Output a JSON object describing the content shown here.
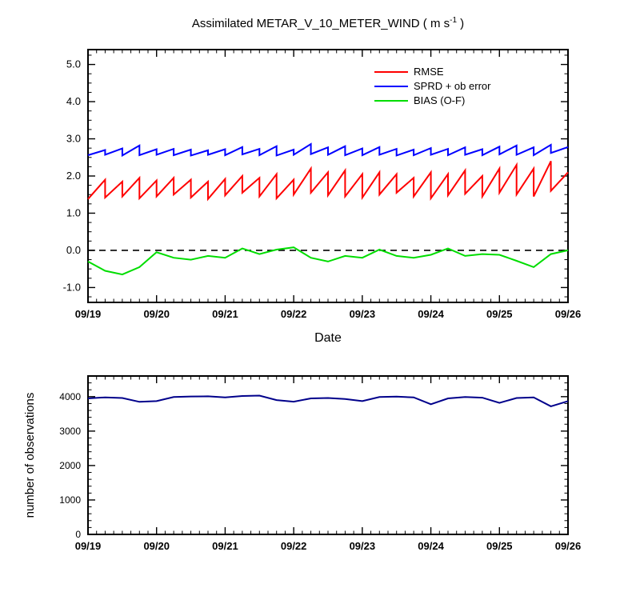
{
  "title": {
    "prefix": "Assimilated METAR_V_10_METER_WIND ( m s",
    "sup": "-1",
    "suffix": " )"
  },
  "chart_data": [
    {
      "type": "line",
      "panel": "top",
      "title": "Assimilated METAR_V_10_METER_WIND ( m s-1 )",
      "xlabel": "Date",
      "ylabel": "",
      "xlim": [
        0,
        7
      ],
      "ylim": [
        -1.4,
        5.4
      ],
      "xticks": [
        0,
        1,
        2,
        3,
        4,
        5,
        6,
        7
      ],
      "xtick_labels": [
        "09/19",
        "09/20",
        "09/21",
        "09/22",
        "09/23",
        "09/24",
        "09/25",
        "09/26"
      ],
      "yticks": [
        -1,
        0,
        1,
        2,
        3,
        4,
        5
      ],
      "ytick_labels": [
        "-1.0",
        "0.0",
        "1.0",
        "2.0",
        "3.0",
        "4.0",
        "5.0"
      ],
      "xminor": 0.125,
      "yminor": 0.25,
      "grid": false,
      "refline": 0.0,
      "legend_position": "inside-top-right",
      "legend": [
        {
          "label": "RMSE",
          "color": "#ff0000"
        },
        {
          "label": "SPRD + ob error",
          "color": "#0000ff"
        },
        {
          "label": "BIAS (O-F)",
          "color": "#00dd00"
        }
      ],
      "series": [
        {
          "name": "RMSE",
          "color": "#ff0000",
          "mode": "sawtooth",
          "x0": 0,
          "dx": 0.25,
          "lows": [
            1.38,
            1.42,
            1.45,
            1.4,
            1.45,
            1.5,
            1.42,
            1.38,
            1.48,
            1.55,
            1.45,
            1.4,
            1.5,
            1.55,
            1.48,
            1.45,
            1.42,
            1.5,
            1.55,
            1.45,
            1.4,
            1.48,
            1.52,
            1.45,
            1.55,
            1.5,
            1.45,
            1.6
          ],
          "highs": [
            1.9,
            1.85,
            1.95,
            1.88,
            1.95,
            1.9,
            1.85,
            1.92,
            2.0,
            1.95,
            2.05,
            1.9,
            2.2,
            2.1,
            2.15,
            2.05,
            2.1,
            2.05,
            1.95,
            2.1,
            2.05,
            2.15,
            2.0,
            2.2,
            2.3,
            2.2,
            2.4,
            2.1
          ]
        },
        {
          "name": "SPRD + ob error",
          "color": "#0000ff",
          "mode": "sawtooth",
          "x0": 0,
          "dx": 0.25,
          "lows": [
            2.56,
            2.57,
            2.55,
            2.56,
            2.57,
            2.56,
            2.55,
            2.57,
            2.56,
            2.58,
            2.56,
            2.55,
            2.57,
            2.59,
            2.57,
            2.56,
            2.56,
            2.57,
            2.55,
            2.56,
            2.57,
            2.56,
            2.57,
            2.56,
            2.58,
            2.57,
            2.56,
            2.62
          ],
          "highs": [
            2.7,
            2.74,
            2.82,
            2.72,
            2.73,
            2.71,
            2.69,
            2.72,
            2.78,
            2.73,
            2.8,
            2.71,
            2.86,
            2.77,
            2.8,
            2.74,
            2.78,
            2.73,
            2.71,
            2.75,
            2.73,
            2.77,
            2.72,
            2.79,
            2.82,
            2.77,
            2.84,
            2.78
          ]
        },
        {
          "name": "BIAS (O-F)",
          "color": "#00dd00",
          "mode": "poly",
          "x0": 0,
          "dx": 0.25,
          "y": [
            -0.3,
            -0.55,
            -0.65,
            -0.45,
            -0.05,
            -0.2,
            -0.25,
            -0.15,
            -0.2,
            0.05,
            -0.1,
            0.02,
            0.08,
            -0.2,
            -0.3,
            -0.15,
            -0.2,
            0.02,
            -0.15,
            -0.2,
            -0.12,
            0.05,
            -0.15,
            -0.1,
            -0.12,
            -0.28,
            -0.45,
            -0.1,
            0.0
          ]
        }
      ]
    },
    {
      "type": "line",
      "panel": "bottom",
      "xlabel": "",
      "ylabel": "number of observations",
      "xlim": [
        0,
        7
      ],
      "ylim": [
        0,
        4600
      ],
      "xticks": [
        0,
        1,
        2,
        3,
        4,
        5,
        6,
        7
      ],
      "xtick_labels": [
        "09/19",
        "09/20",
        "09/21",
        "09/22",
        "09/23",
        "09/24",
        "09/25",
        "09/26"
      ],
      "yticks": [
        0,
        1000,
        2000,
        3000,
        4000
      ],
      "ytick_labels": [
        "0",
        "1000",
        "2000",
        "3000",
        "4000"
      ],
      "xminor": 0.125,
      "yminor": 200,
      "grid": false,
      "series": [
        {
          "name": "number of observations",
          "color": "#00008b",
          "mode": "poly",
          "x0": 0,
          "dx": 0.25,
          "y": [
            3950,
            3980,
            3960,
            3850,
            3870,
            3990,
            4005,
            4010,
            3980,
            4020,
            4030,
            3900,
            3855,
            3950,
            3960,
            3930,
            3870,
            3990,
            4000,
            3980,
            3780,
            3950,
            3990,
            3970,
            3820,
            3960,
            3980,
            3720,
            3870
          ]
        }
      ]
    }
  ]
}
